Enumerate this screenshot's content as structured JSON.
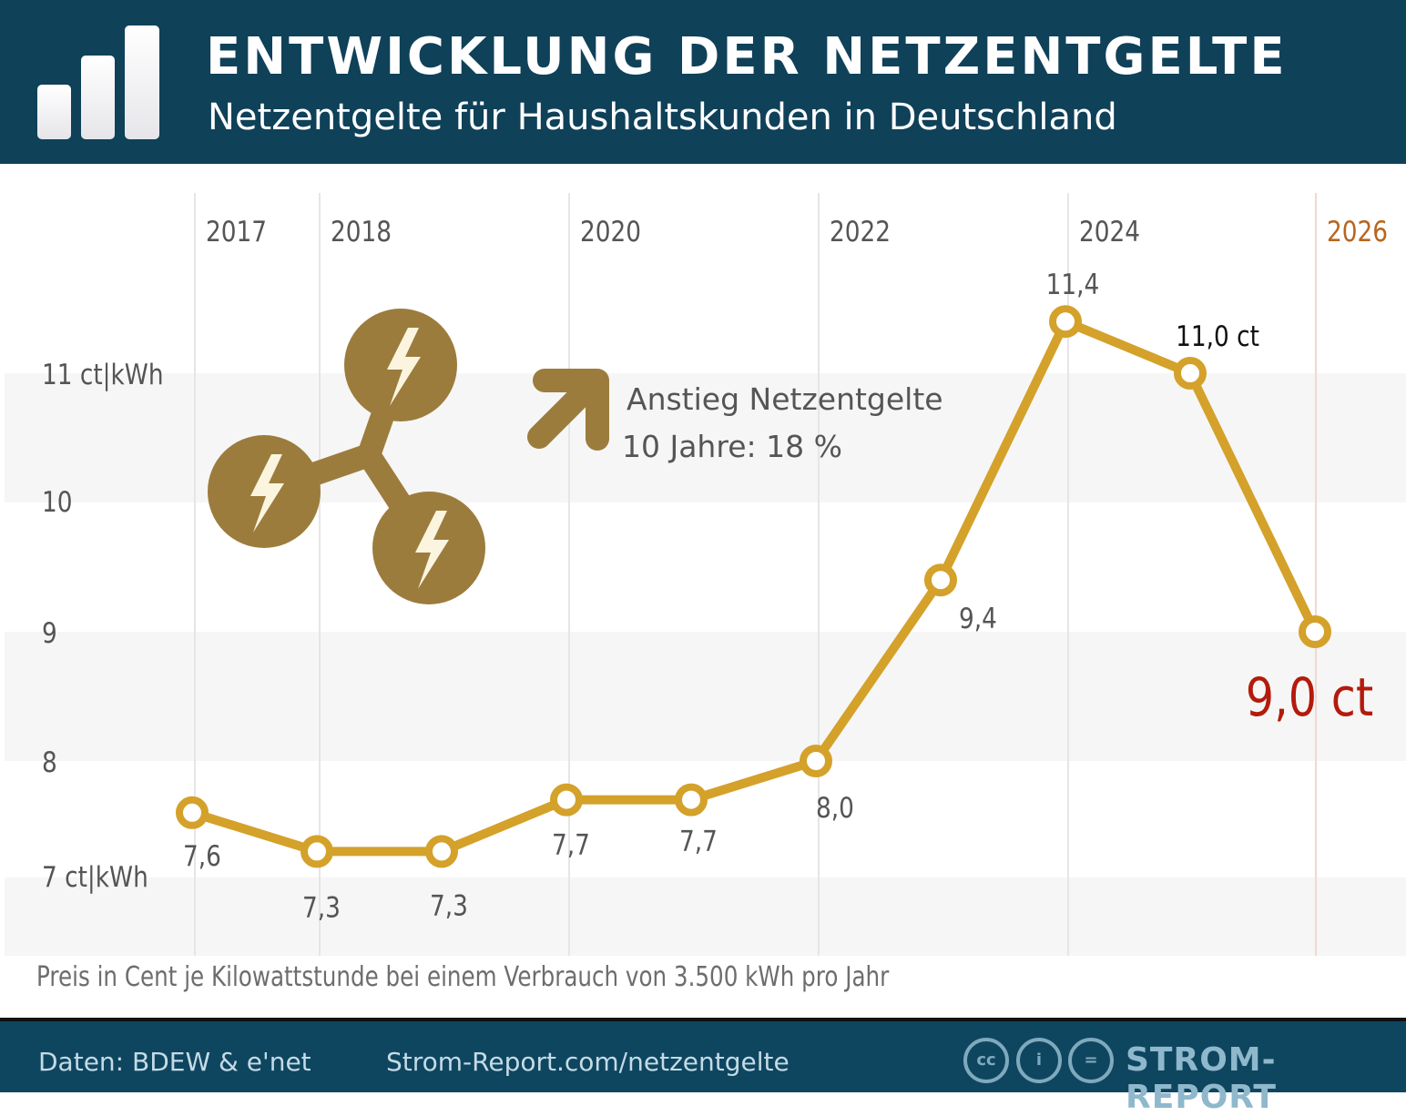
{
  "header": {
    "title": "ENTWICKLUNG DER NETZENTGELTE",
    "subtitle": "Netzentgelte für Haushaltskunden in Deutschland",
    "icon": "bar-chart-icon"
  },
  "annotation": {
    "line1": "Anstieg Netzentgelte",
    "line2": "10 Jahre: 18 %",
    "icon": "arrow-up-right-icon",
    "graphic": "power-grid-lightning-icon"
  },
  "note": "Preis in Cent je Kilowattstunde bei einem Verbrauch von 3.500 kWh pro Jahr",
  "footer": {
    "source": "Daten: BDEW & e'net",
    "url": "Strom-Report.com/netzentgelte",
    "brand": "STROM-REPORT",
    "license_icons": [
      "cc-icon",
      "by-icon",
      "nd-icon"
    ]
  },
  "colors": {
    "header": "#0f4159",
    "line": "#d4a12a",
    "highlight": "#b31b0c",
    "year_2026": "#b8651f",
    "icon": "#9c7c3c"
  },
  "chart_data": {
    "type": "line",
    "title": "ENTWICKLUNG DER NETZENTGELTE",
    "subtitle": "Netzentgelte für Haushaltskunden in Deutschland",
    "x": [
      2017,
      2018,
      2019,
      2020,
      2021,
      2022,
      2023,
      2024,
      2025,
      2026
    ],
    "values": [
      7.6,
      7.3,
      7.3,
      7.7,
      7.7,
      8.0,
      9.4,
      11.4,
      11.0,
      9.0
    ],
    "data_labels": [
      "7,6",
      "7,3",
      "7,3",
      "7,7",
      "7,7",
      "8,0",
      "9,4",
      "11,4",
      "11,0 ct",
      "9,0 ct"
    ],
    "x_tick_labels": [
      "2017",
      "2018",
      "2020",
      "2022",
      "2024",
      "2026"
    ],
    "x_tick_years": [
      2017,
      2018,
      2020,
      2022,
      2024,
      2026
    ],
    "y_tick_labels": [
      "7 ct|kWh",
      "8",
      "9",
      "10",
      "11 ct|kWh"
    ],
    "y_ticks": [
      7,
      8,
      9,
      10,
      11
    ],
    "ylim": [
      7,
      11.5
    ],
    "grid": "vertical lines at labeled years, alternating horizontal bands"
  }
}
